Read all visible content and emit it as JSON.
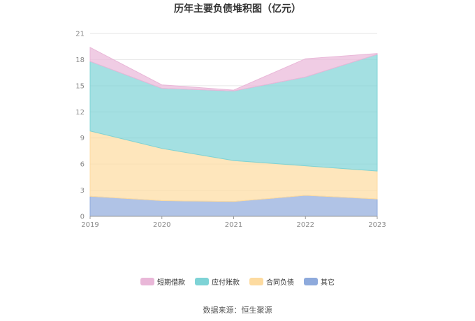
{
  "chart_data": {
    "type": "area",
    "stacked": true,
    "title": "历年主要负债堆积图（亿元）",
    "x": [
      "2019",
      "2020",
      "2021",
      "2022",
      "2023"
    ],
    "ylim": [
      0,
      21
    ],
    "yticks": [
      "0",
      "3",
      "6",
      "9",
      "12",
      "15",
      "18",
      "21"
    ],
    "grid": true,
    "legend_position": "bottom",
    "series": [
      {
        "name": "其它",
        "color": "#8eaadc",
        "values": [
          2.3,
          1.8,
          1.7,
          2.4,
          2.0
        ]
      },
      {
        "name": "合同负债",
        "color": "#fddba0",
        "values": [
          7.5,
          6.0,
          4.7,
          3.4,
          3.2
        ]
      },
      {
        "name": "应付账款",
        "color": "#7ed3d6",
        "values": [
          8.0,
          6.9,
          8.0,
          10.2,
          13.4
        ]
      },
      {
        "name": "短期借款",
        "color": "#e9b7d8",
        "values": [
          1.6,
          0.4,
          0.1,
          2.1,
          0.1
        ]
      }
    ],
    "legend_order": [
      "短期借款",
      "应付账款",
      "合同负债",
      "其它"
    ]
  },
  "source_text": "数据来源：恒生聚源"
}
